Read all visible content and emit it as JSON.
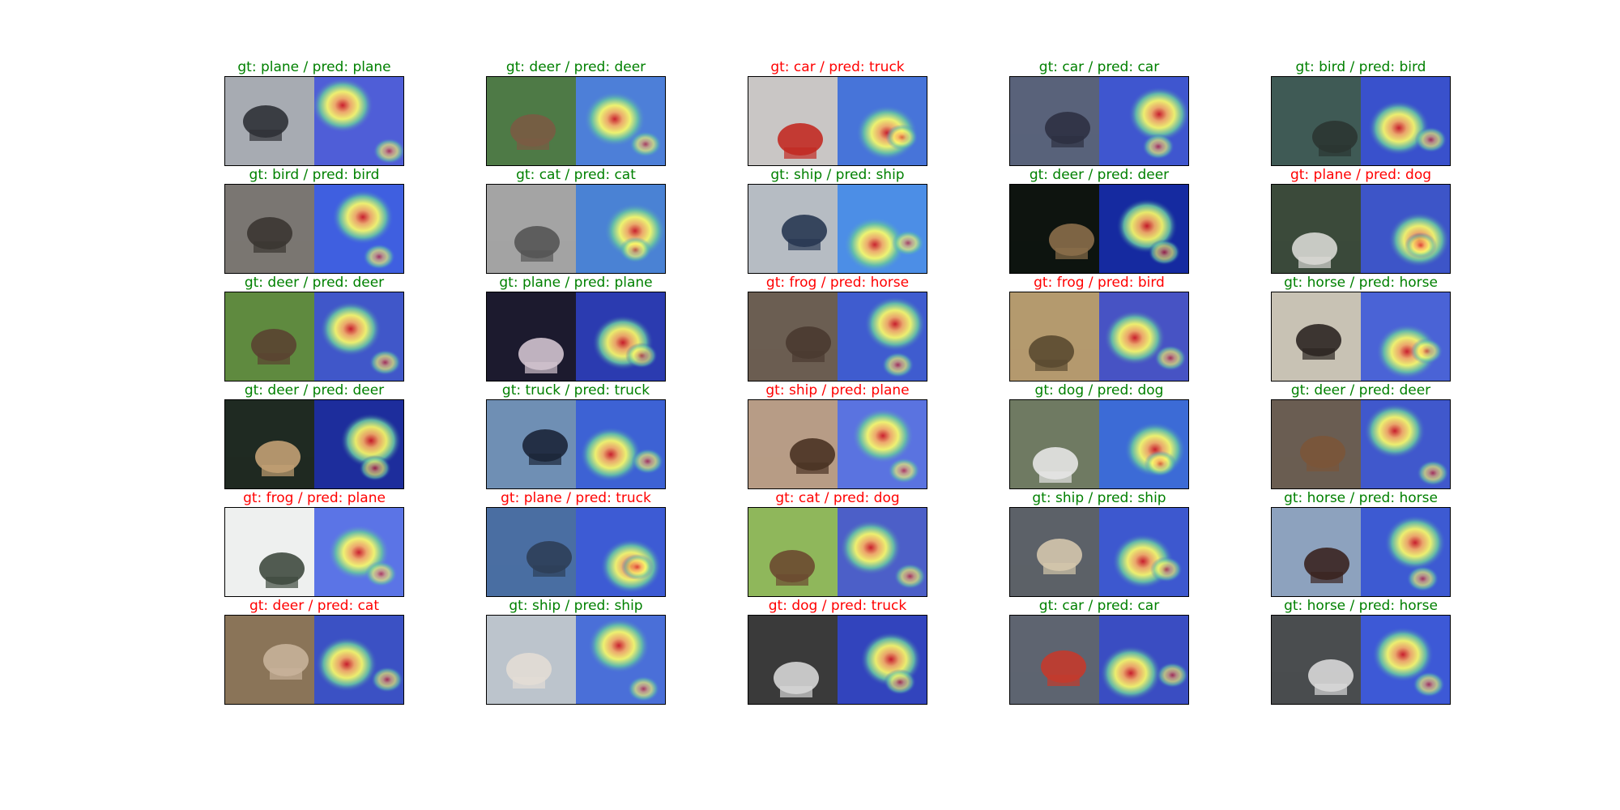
{
  "figure": {
    "panels": [
      {
        "gt": "plane",
        "pred": "plane",
        "title": "gt: plane / pred: plane",
        "correct": true,
        "img_bg": "#a7abb2",
        "img_obj": "#2f3136",
        "heat_bg": "#4f5ed7"
      },
      {
        "gt": "deer",
        "pred": "deer",
        "title": "gt: deer / pred: deer",
        "correct": true,
        "img_bg": "#4e7a46",
        "img_obj": "#7a5b43",
        "heat_bg": "#4d7fd8"
      },
      {
        "gt": "car",
        "pred": "truck",
        "title": "gt: car / pred: truck",
        "correct": false,
        "img_bg": "#c9c6c5",
        "img_obj": "#c22a22",
        "heat_bg": "#4774d9"
      },
      {
        "gt": "car",
        "pred": "car",
        "title": "gt: car / pred: car",
        "correct": true,
        "img_bg": "#59627a",
        "img_obj": "#2d3142",
        "heat_bg": "#3f56cf"
      },
      {
        "gt": "bird",
        "pred": "bird",
        "title": "gt: bird / pred: bird",
        "correct": true,
        "img_bg": "#3f5a55",
        "img_obj": "#2b3532",
        "heat_bg": "#3951cc"
      },
      {
        "gt": "bird",
        "pred": "bird",
        "title": "gt: bird / pred: bird",
        "correct": true,
        "img_bg": "#7a7672",
        "img_obj": "#3b3632",
        "heat_bg": "#3f5fe0"
      },
      {
        "gt": "cat",
        "pred": "cat",
        "title": "gt: cat / pred: cat",
        "correct": true,
        "img_bg": "#a4a4a4",
        "img_obj": "#555555",
        "heat_bg": "#4a82d4"
      },
      {
        "gt": "ship",
        "pred": "ship",
        "title": "gt: ship / pred: ship",
        "correct": true,
        "img_bg": "#b6bcc3",
        "img_obj": "#283752",
        "heat_bg": "#4c8ee6"
      },
      {
        "gt": "deer",
        "pred": "deer",
        "title": "gt: deer / pred: deer",
        "correct": true,
        "img_bg": "#0e140f",
        "img_obj": "#8a6d4a",
        "heat_bg": "#152aa0"
      },
      {
        "gt": "plane",
        "pred": "dog",
        "title": "gt: plane / pred: dog",
        "correct": false,
        "img_bg": "#3b4a3a",
        "img_obj": "#d8d8d4",
        "heat_bg": "#3d55c8"
      },
      {
        "gt": "deer",
        "pred": "deer",
        "title": "gt: deer / pred: deer",
        "correct": true,
        "img_bg": "#5f8a3f",
        "img_obj": "#5a4331",
        "heat_bg": "#4057c9"
      },
      {
        "gt": "plane",
        "pred": "plane",
        "title": "gt: plane / pred: plane",
        "correct": true,
        "img_bg": "#1c1a2e",
        "img_obj": "#d2c3cf",
        "heat_bg": "#2b3bb0"
      },
      {
        "gt": "frog",
        "pred": "horse",
        "title": "gt: frog / pred: horse",
        "correct": false,
        "img_bg": "#6b5e52",
        "img_obj": "#4a3a30",
        "heat_bg": "#3f5ccf"
      },
      {
        "gt": "frog",
        "pred": "bird",
        "title": "gt: frog / pred: bird",
        "correct": false,
        "img_bg": "#b49a6e",
        "img_obj": "#5a4a30",
        "heat_bg": "#4753c4"
      },
      {
        "gt": "horse",
        "pred": "horse",
        "title": "gt: horse / pred: horse",
        "correct": true,
        "img_bg": "#c8c2b4",
        "img_obj": "#2c2622",
        "heat_bg": "#4a63d6"
      },
      {
        "gt": "deer",
        "pred": "deer",
        "title": "gt: deer / pred: deer",
        "correct": true,
        "img_bg": "#1f2a22",
        "img_obj": "#c2a074",
        "heat_bg": "#1d2d9c"
      },
      {
        "gt": "truck",
        "pred": "truck",
        "title": "gt: truck / pred: truck",
        "correct": true,
        "img_bg": "#6f8fb4",
        "img_obj": "#1b2538",
        "heat_bg": "#3d62d4"
      },
      {
        "gt": "ship",
        "pred": "plane",
        "title": "gt: ship / pred: plane",
        "correct": false,
        "img_bg": "#b79c86",
        "img_obj": "#4a3324",
        "heat_bg": "#5a73e0"
      },
      {
        "gt": "dog",
        "pred": "dog",
        "title": "gt: dog / pred: dog",
        "correct": true,
        "img_bg": "#6f7a62",
        "img_obj": "#e6e6e6",
        "heat_bg": "#3c6bd6"
      },
      {
        "gt": "deer",
        "pred": "deer",
        "title": "gt: deer / pred: deer",
        "correct": true,
        "img_bg": "#6a5d52",
        "img_obj": "#7b5539",
        "heat_bg": "#4058cc"
      },
      {
        "gt": "frog",
        "pred": "plane",
        "title": "gt: frog / pred: plane",
        "correct": false,
        "img_bg": "#eef0ef",
        "img_obj": "#3f4a3f",
        "heat_bg": "#5b74e6"
      },
      {
        "gt": "plane",
        "pred": "truck",
        "title": "gt: plane / pred: truck",
        "correct": false,
        "img_bg": "#4a6ea2",
        "img_obj": "#2d3e58",
        "heat_bg": "#3d5bd4"
      },
      {
        "gt": "cat",
        "pred": "dog",
        "title": "gt: cat / pred: dog",
        "correct": false,
        "img_bg": "#8fb75b",
        "img_obj": "#6b4a30",
        "heat_bg": "#4c5fc8"
      },
      {
        "gt": "ship",
        "pred": "ship",
        "title": "gt: ship / pred: ship",
        "correct": true,
        "img_bg": "#5c6168",
        "img_obj": "#d4c7ad",
        "heat_bg": "#3d58cf"
      },
      {
        "gt": "horse",
        "pred": "horse",
        "title": "gt: horse / pred: horse",
        "correct": true,
        "img_bg": "#8da2be",
        "img_obj": "#3a2420",
        "heat_bg": "#3d5ad2"
      },
      {
        "gt": "deer",
        "pred": "cat",
        "title": "gt: deer / pred: cat",
        "correct": false,
        "img_bg": "#8a7458",
        "img_obj": "#c7b29a",
        "heat_bg": "#3b51c4"
      },
      {
        "gt": "ship",
        "pred": "ship",
        "title": "gt: ship / pred: ship",
        "correct": true,
        "img_bg": "#bcc4cc",
        "img_obj": "#e2ddd5",
        "heat_bg": "#4a6fd8"
      },
      {
        "gt": "dog",
        "pred": "truck",
        "title": "gt: dog / pred: truck",
        "correct": false,
        "img_bg": "#3a3a3a",
        "img_obj": "#d6d6d6",
        "heat_bg": "#3244bd"
      },
      {
        "gt": "car",
        "pred": "car",
        "title": "gt: car / pred: car",
        "correct": true,
        "img_bg": "#5e6470",
        "img_obj": "#c43a2c",
        "heat_bg": "#3a4dc2"
      },
      {
        "gt": "horse",
        "pred": "horse",
        "title": "gt: horse / pred: horse",
        "correct": true,
        "img_bg": "#4a4d4f",
        "img_obj": "#d8d8d8",
        "heat_bg": "#3d59d6"
      }
    ],
    "colors": {
      "correct": "#008000",
      "wrong": "#ff0000"
    }
  }
}
